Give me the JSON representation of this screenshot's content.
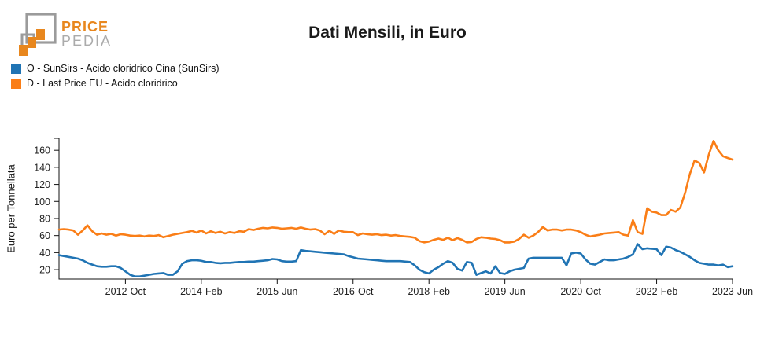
{
  "logo": {
    "line1": "PRICE",
    "line2": "PEDIA",
    "orange": "#E8871E",
    "gray": "#9B9B9B"
  },
  "title": "Dati Mensili, in Euro",
  "chart_data": {
    "type": "line",
    "title": "Dati Mensili, in Euro",
    "xlabel": "",
    "ylabel": "Euro per Tonnellata",
    "x_start": "2011-Aug",
    "x_end": "2023-Jun",
    "x_frequency": "monthly",
    "ylim": [
      9,
      174
    ],
    "y_ticks": [
      20,
      40,
      60,
      80,
      100,
      120,
      140,
      160
    ],
    "x_ticks": [
      {
        "index": 14,
        "label": "2012-Oct"
      },
      {
        "index": 30,
        "label": "2014-Feb"
      },
      {
        "index": 46,
        "label": "2015-Jun"
      },
      {
        "index": 62,
        "label": "2016-Oct"
      },
      {
        "index": 78,
        "label": "2018-Feb"
      },
      {
        "index": 94,
        "label": "2019-Jun"
      },
      {
        "index": 110,
        "label": "2020-Oct"
      },
      {
        "index": 126,
        "label": "2022-Feb"
      },
      {
        "index": 142,
        "label": "2023-Jun"
      }
    ],
    "grid": false,
    "legend_position": "top-left",
    "series": [
      {
        "name": "O - SunSirs - Acido cloridrico Cina (SunSirs)",
        "color": "#2074B4",
        "values": [
          37,
          36,
          35,
          34,
          33,
          31,
          28,
          26,
          24,
          23.5,
          23.5,
          24,
          24,
          22,
          18,
          14,
          12,
          12,
          13,
          14,
          15,
          15.5,
          16,
          14,
          14,
          18,
          27,
          30,
          31,
          31,
          30.5,
          29,
          29,
          28,
          27.5,
          28,
          28,
          28.5,
          29,
          29,
          29.5,
          29.5,
          30,
          30.5,
          31,
          32.5,
          32,
          30,
          29.5,
          29.5,
          30,
          43,
          42,
          41.5,
          41,
          40.5,
          40,
          39.5,
          39,
          38.5,
          38,
          36,
          34.5,
          33,
          32.5,
          32,
          31.5,
          31,
          30.5,
          30,
          30,
          30,
          30,
          29.5,
          29,
          25,
          20,
          17,
          15.5,
          20,
          23,
          27,
          30,
          28,
          21,
          19,
          29,
          28,
          14,
          16,
          18,
          15.5,
          24,
          16,
          15,
          18,
          20,
          21,
          22,
          33,
          34,
          34,
          34,
          34,
          34,
          34,
          34,
          25,
          39,
          40,
          39,
          32,
          27,
          26,
          29,
          32,
          31,
          31,
          32,
          33,
          35,
          38,
          50,
          44,
          45,
          44.5,
          44,
          37,
          47,
          46,
          43,
          41,
          38,
          35,
          31,
          28,
          27,
          26,
          26,
          25,
          26,
          23,
          24
        ]
      },
      {
        "name": "D - Last Price EU - Acido cloridrico",
        "color": "#FA7E17",
        "values": [
          67,
          67.5,
          67,
          66,
          61,
          66,
          72,
          65,
          61,
          62.5,
          61,
          62,
          60,
          61.5,
          61,
          60,
          59.5,
          60,
          59,
          60,
          59.5,
          60.5,
          58,
          59.5,
          61,
          62,
          63,
          64,
          65.5,
          63.5,
          66,
          62.5,
          65,
          63,
          64.5,
          62.5,
          64,
          63,
          65,
          64.5,
          67.5,
          66.5,
          68,
          69,
          68.5,
          69.5,
          69,
          68,
          68.5,
          69,
          68,
          69.5,
          68,
          67,
          67.5,
          66,
          61.5,
          65.5,
          62,
          66,
          64.5,
          64,
          64,
          60.5,
          62.5,
          61.5,
          61,
          61.5,
          60.5,
          61,
          60,
          60.5,
          59.5,
          59,
          58.5,
          57.5,
          53.5,
          52,
          53,
          55,
          56.5,
          55,
          57.5,
          54.5,
          57,
          55,
          52,
          52.5,
          56,
          58,
          57.5,
          56.5,
          56,
          54.5,
          52,
          52,
          53,
          56,
          61,
          57.5,
          60,
          64,
          70,
          66,
          67,
          67,
          66,
          67,
          67,
          66,
          64,
          61,
          59,
          60,
          61,
          62.5,
          63,
          63.5,
          64,
          61,
          60,
          78,
          64,
          62,
          92,
          88,
          87,
          84,
          84,
          90,
          88,
          93,
          110,
          132,
          148,
          145,
          134,
          155,
          171,
          160,
          153,
          151,
          149
        ]
      }
    ]
  }
}
